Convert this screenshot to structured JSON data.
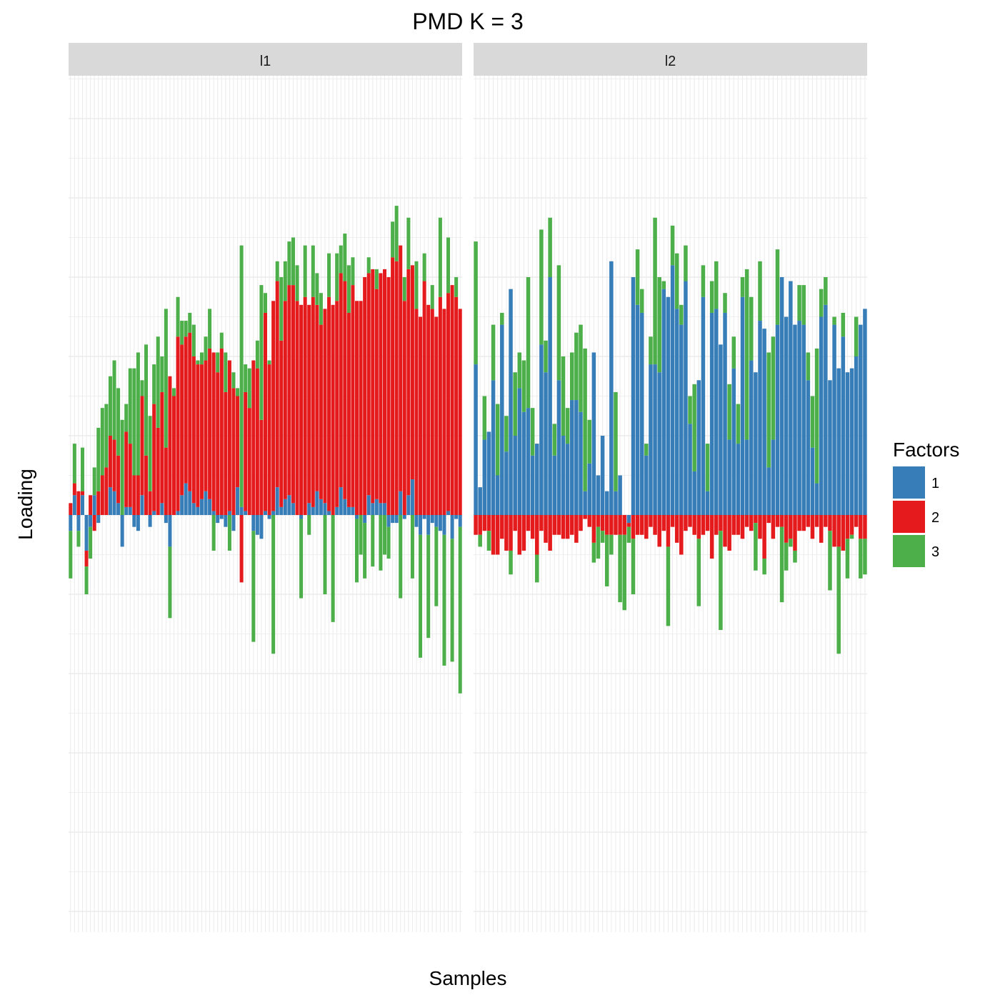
{
  "chart_data": {
    "type": "bar",
    "stacked": "diverging",
    "title": "PMD K = 3",
    "xlabel": "Samples",
    "ylabel": "Loading",
    "ylim": [
      -1.0,
      1.2
    ],
    "grid": true,
    "legend": {
      "title": "Factors",
      "placement": "right",
      "entries": [
        {
          "label": "1",
          "color": "#377EB8"
        },
        {
          "label": "2",
          "color": "#E41A1C"
        },
        {
          "label": "3",
          "color": "#4DAF4A"
        }
      ]
    },
    "panels": [
      {
        "label": "l1",
        "series": [
          {
            "name": "1",
            "values": [
              -0.04,
              0.05,
              -0.04,
              0.05,
              -0.09,
              -0.03,
              0.05,
              -0.02,
              0.0,
              0.0,
              0.07,
              0.06,
              0.03,
              -0.08,
              0.02,
              0.02,
              -0.03,
              -0.04,
              0.05,
              0.0,
              -0.03,
              0.01,
              0.0,
              0.03,
              -0.02,
              -0.08,
              0.0,
              0.01,
              0.05,
              0.08,
              0.06,
              0.03,
              0.02,
              0.04,
              0.06,
              0.04,
              0.01,
              -0.02,
              -0.01,
              -0.03,
              0.01,
              -0.04,
              0.07,
              0.02,
              0.01,
              0.0,
              -0.04,
              -0.05,
              -0.06,
              0.01,
              -0.01,
              0.01,
              0.07,
              0.02,
              0.04,
              0.05,
              0.03,
              0.0,
              -0.01,
              0.0,
              0.03,
              0.02,
              0.06,
              0.04,
              0.03,
              0.01,
              0.0,
              0.02,
              0.07,
              0.04,
              0.02,
              0.02,
              -0.01,
              0.0,
              -0.02,
              0.05,
              0.03,
              0.04,
              0.03,
              0.03,
              -0.03,
              -0.02,
              -0.02,
              0.06,
              -0.01,
              0.05,
              0.09,
              -0.03,
              -0.05,
              -0.01,
              -0.05,
              -0.02,
              -0.03,
              -0.04,
              -0.05,
              0.01,
              -0.06,
              -0.01,
              -0.03
            ]
          },
          {
            "name": "2",
            "values": [
              0.03,
              0.03,
              0.06,
              0.01,
              -0.04,
              0.05,
              -0.04,
              0.06,
              0.1,
              0.12,
              0.13,
              0.13,
              0.12,
              0.0,
              0.19,
              0.16,
              0.1,
              0.1,
              0.25,
              0.15,
              0.06,
              0.27,
              0.22,
              0.28,
              0.17,
              0.35,
              0.3,
              0.44,
              0.38,
              0.37,
              0.4,
              0.37,
              0.36,
              0.34,
              0.33,
              0.38,
              0.4,
              0.36,
              0.42,
              0.31,
              0.38,
              0.32,
              0.23,
              -0.17,
              0.3,
              0.27,
              0.39,
              0.37,
              0.24,
              0.5,
              0.38,
              0.53,
              0.52,
              0.42,
              0.5,
              0.53,
              0.55,
              0.54,
              0.53,
              0.55,
              0.5,
              0.53,
              0.47,
              0.44,
              0.49,
              0.54,
              0.53,
              0.52,
              0.54,
              0.55,
              0.49,
              0.56,
              0.54,
              0.54,
              0.6,
              0.56,
              0.59,
              0.53,
              0.58,
              0.59,
              0.6,
              0.65,
              0.64,
              0.62,
              0.54,
              0.57,
              0.54,
              0.52,
              0.5,
              0.59,
              0.53,
              0.52,
              0.5,
              0.55,
              0.52,
              0.55,
              0.58,
              0.55,
              0.52
            ]
          },
          {
            "name": "3",
            "values": [
              -0.12,
              0.1,
              -0.04,
              0.11,
              -0.07,
              -0.08,
              0.07,
              0.16,
              0.17,
              0.16,
              0.15,
              0.2,
              0.17,
              0.24,
              0.07,
              0.19,
              0.27,
              0.31,
              0.04,
              0.28,
              0.19,
              0.1,
              0.23,
              0.09,
              0.35,
              -0.18,
              0.02,
              0.1,
              0.06,
              0.04,
              0.05,
              0.08,
              0.01,
              0.03,
              0.06,
              0.1,
              -0.09,
              0.05,
              0.04,
              0.1,
              -0.09,
              0.04,
              0.02,
              0.66,
              0.07,
              0.1,
              -0.28,
              0.07,
              0.34,
              0.05,
              0.01,
              -0.35,
              0.05,
              0.16,
              0.1,
              0.11,
              0.12,
              0.09,
              -0.2,
              0.13,
              -0.05,
              0.13,
              0.08,
              0.08,
              -0.2,
              0.11,
              -0.27,
              0.12,
              0.07,
              0.12,
              0.12,
              0.07,
              -0.16,
              -0.1,
              -0.14,
              0.04,
              -0.13,
              0.05,
              -0.14,
              -0.1,
              -0.08,
              0.09,
              0.14,
              -0.21,
              0.06,
              0.13,
              -0.16,
              0.12,
              -0.31,
              0.07,
              -0.26,
              0.06,
              -0.2,
              0.2,
              -0.33,
              0.14,
              -0.31,
              0.05,
              -0.42
            ]
          }
        ]
      },
      {
        "label": "l2",
        "series": [
          {
            "name": "1",
            "values": [
              0.38,
              0.07,
              0.19,
              0.21,
              0.34,
              0.1,
              0.48,
              0.16,
              0.57,
              0.2,
              0.32,
              0.26,
              0.27,
              0.15,
              0.18,
              0.43,
              0.36,
              0.6,
              0.15,
              0.34,
              0.2,
              0.18,
              0.29,
              0.29,
              0.26,
              0.06,
              0.13,
              0.41,
              0.1,
              0.2,
              0.06,
              0.64,
              0.06,
              0.1,
              0.0,
              -0.02,
              0.6,
              0.53,
              0.51,
              0.15,
              0.38,
              0.38,
              0.36,
              0.57,
              0.55,
              0.63,
              0.52,
              0.48,
              0.59,
              0.23,
              0.11,
              0.34,
              0.55,
              0.06,
              0.51,
              0.52,
              0.43,
              0.51,
              0.19,
              0.37,
              0.18,
              0.55,
              0.19,
              0.39,
              0.36,
              0.49,
              0.47,
              0.12,
              0.19,
              0.48,
              0.6,
              0.5,
              0.59,
              0.48,
              0.49,
              0.48,
              0.34,
              0.17,
              0.08,
              0.5,
              0.53,
              0.34,
              0.48,
              0.37,
              0.45,
              0.36,
              0.37,
              0.4,
              0.48,
              0.52
            ]
          },
          {
            "name": "2",
            "values": [
              -0.05,
              -0.05,
              -0.04,
              -0.04,
              -0.1,
              -0.1,
              -0.06,
              -0.09,
              -0.09,
              -0.04,
              -0.1,
              -0.09,
              -0.04,
              -0.06,
              -0.1,
              -0.04,
              -0.07,
              -0.09,
              -0.05,
              -0.05,
              -0.06,
              -0.06,
              -0.05,
              -0.07,
              -0.04,
              -0.01,
              -0.03,
              -0.07,
              -0.03,
              -0.04,
              -0.05,
              -0.05,
              -0.05,
              -0.05,
              -0.05,
              -0.01,
              -0.06,
              -0.05,
              -0.05,
              -0.06,
              -0.03,
              -0.05,
              -0.08,
              -0.04,
              -0.08,
              -0.03,
              -0.07,
              -0.1,
              -0.04,
              -0.03,
              -0.05,
              -0.06,
              -0.05,
              -0.04,
              -0.11,
              -0.05,
              -0.04,
              -0.08,
              -0.09,
              -0.05,
              -0.05,
              -0.06,
              -0.03,
              -0.04,
              -0.02,
              -0.06,
              -0.11,
              -0.02,
              -0.06,
              -0.03,
              -0.03,
              -0.07,
              -0.06,
              -0.09,
              -0.04,
              -0.04,
              -0.03,
              -0.06,
              -0.03,
              -0.07,
              -0.03,
              -0.04,
              -0.08,
              -0.08,
              -0.09,
              -0.06,
              -0.05,
              -0.03,
              -0.06,
              -0.06
            ]
          },
          {
            "name": "3",
            "values": [
              0.31,
              -0.03,
              0.11,
              -0.05,
              0.14,
              0.18,
              0.03,
              0.09,
              -0.06,
              0.16,
              0.09,
              0.13,
              0.33,
              0.12,
              -0.07,
              0.29,
              0.08,
              0.15,
              0.08,
              0.29,
              0.2,
              0.09,
              0.12,
              0.17,
              0.22,
              0.36,
              0.11,
              -0.05,
              -0.08,
              -0.03,
              -0.13,
              -0.05,
              0.25,
              -0.17,
              -0.19,
              -0.04,
              -0.14,
              0.14,
              0.06,
              0.03,
              0.07,
              0.37,
              0.24,
              0.02,
              -0.2,
              0.1,
              0.14,
              0.05,
              0.09,
              0.07,
              0.22,
              -0.17,
              0.08,
              0.12,
              0.08,
              0.12,
              -0.25,
              0.05,
              0.14,
              0.08,
              0.1,
              0.05,
              0.43,
              0.16,
              -0.12,
              0.15,
              -0.04,
              0.29,
              0.26,
              0.19,
              -0.19,
              -0.07,
              -0.02,
              -0.03,
              0.09,
              0.1,
              0.07,
              0.13,
              0.34,
              0.07,
              0.07,
              -0.15,
              0.02,
              -0.27,
              0.06,
              -0.1,
              -0.01,
              0.1,
              -0.1,
              -0.09
            ]
          }
        ]
      }
    ]
  }
}
